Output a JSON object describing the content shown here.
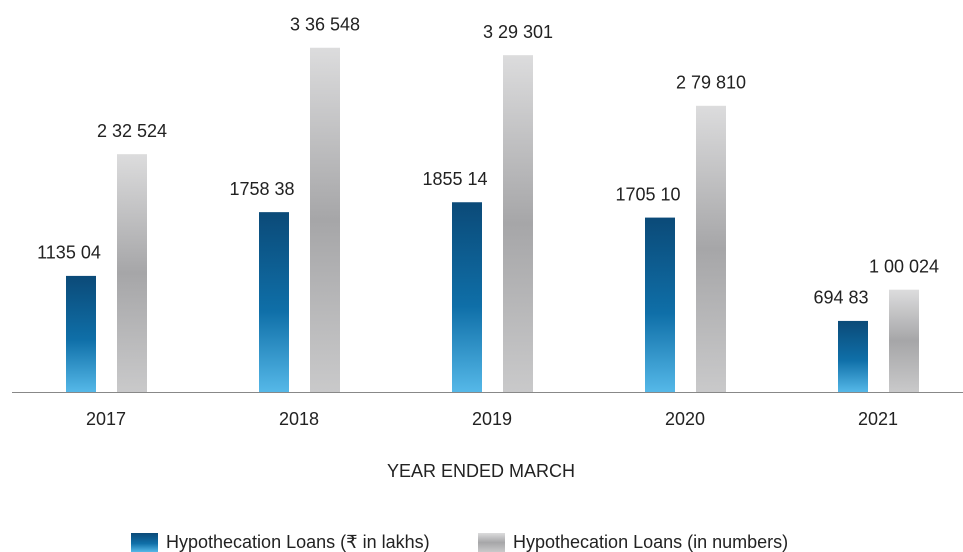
{
  "chart_data": {
    "type": "bar",
    "x_label": "YEAR ENDED MARCH",
    "categories": [
      "2017",
      "2018",
      "2019",
      "2020",
      "2021"
    ],
    "series": [
      {
        "name": "Hypothecation Loans (₹ in lakhs)",
        "color": "#0f6fa8",
        "values": [
          113504,
          175838,
          185514,
          170510,
          69483
        ],
        "value_labels": [
          "1135 04",
          "1758 38",
          "1855 14",
          "1705 10",
          "694 83"
        ]
      },
      {
        "name": "Hypothecation Loans (in numbers)",
        "color": "#a6a6a8",
        "values": [
          232524,
          336548,
          329301,
          279810,
          100024
        ],
        "value_labels": [
          "2 32 524",
          "3 36 548",
          "3 29 301",
          "2 79 810",
          "1 00 024"
        ]
      }
    ],
    "ylim": [
      0,
      350000
    ]
  }
}
